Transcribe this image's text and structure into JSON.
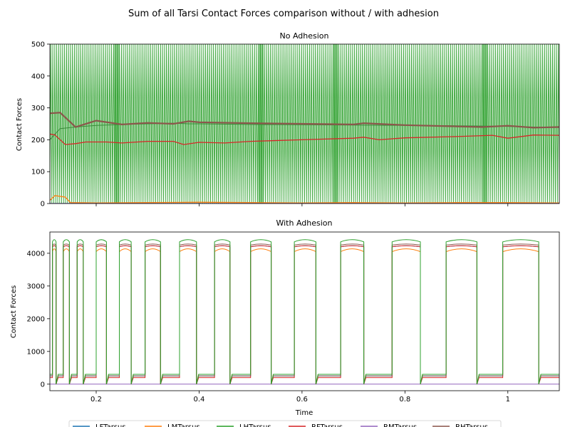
{
  "figure": {
    "title": "Sum of all Tarsi Contact Forces comparison without / with adhesion"
  },
  "legend": {
    "entries": [
      {
        "label": "LFTarsus",
        "color": "#1f77b4"
      },
      {
        "label": "LMTarsus",
        "color": "#ff7f0e"
      },
      {
        "label": "LHTarsus",
        "color": "#2ca02c"
      },
      {
        "label": "RFTarsus",
        "color": "#d62728"
      },
      {
        "label": "RMTarsus",
        "color": "#9467bd"
      },
      {
        "label": "RHTarsus",
        "color": "#8c564b"
      }
    ],
    "placement": "bottom-center"
  },
  "chart_data": [
    {
      "type": "line",
      "title": "No Adhesion",
      "xlabel": "",
      "ylabel": "Contact Forces",
      "xlim": [
        0.11,
        1.1
      ],
      "ylim": [
        0,
        500
      ],
      "xticks": [
        0.2,
        0.4,
        0.6,
        0.8,
        1.0
      ],
      "yticks": [
        0,
        100,
        200,
        300,
        400,
        500
      ],
      "xtick_labels_shown": false,
      "grid": false,
      "series": [
        {
          "name": "LHTarsus",
          "color": "#2ca02c",
          "description_values": "rapid oscillation between 0 and 500",
          "x": [
            0.11,
            0.13,
            0.16,
            0.2,
            0.25,
            0.3,
            0.35,
            0.38,
            0.4,
            0.5,
            0.6,
            0.7,
            0.8,
            0.9,
            0.95,
            1.0,
            1.05,
            1.1
          ],
          "y_envelope_mid": [
            200,
            235,
            240,
            245,
            248,
            250,
            252,
            250,
            250,
            248,
            247,
            246,
            245,
            244,
            243,
            242,
            240,
            240
          ]
        },
        {
          "name": "RHTarsus",
          "color": "#8c564b",
          "x": [
            0.11,
            0.13,
            0.16,
            0.2,
            0.25,
            0.3,
            0.35,
            0.38,
            0.4,
            0.5,
            0.6,
            0.7,
            0.72,
            0.8,
            0.9,
            0.95,
            1.0,
            1.05,
            1.1
          ],
          "y": [
            283,
            285,
            240,
            260,
            248,
            253,
            250,
            258,
            255,
            252,
            250,
            248,
            252,
            246,
            242,
            240,
            244,
            238,
            240
          ]
        },
        {
          "name": "RFTarsus",
          "color": "#d62728",
          "x": [
            0.11,
            0.12,
            0.14,
            0.16,
            0.18,
            0.22,
            0.25,
            0.3,
            0.35,
            0.37,
            0.4,
            0.45,
            0.5,
            0.6,
            0.7,
            0.72,
            0.75,
            0.8,
            0.9,
            0.97,
            1.0,
            1.05,
            1.1
          ],
          "y": [
            218,
            215,
            185,
            188,
            193,
            193,
            190,
            195,
            195,
            185,
            192,
            190,
            195,
            200,
            205,
            208,
            200,
            206,
            210,
            214,
            205,
            215,
            214
          ]
        },
        {
          "name": "LMTarsus",
          "color": "#ff7f0e",
          "x": [
            0.11,
            0.12,
            0.14,
            0.15,
            0.2,
            0.3,
            0.4,
            0.5,
            0.6,
            0.7,
            0.8,
            0.9,
            1.0,
            1.1
          ],
          "y": [
            10,
            25,
            20,
            3,
            2,
            3,
            4,
            3,
            2,
            3,
            2,
            3,
            3,
            2
          ]
        },
        {
          "name": "LFTarsus",
          "color": "#1f77b4",
          "x": [
            0.11,
            1.1
          ],
          "y": [
            0,
            0
          ]
        },
        {
          "name": "RMTarsus",
          "color": "#9467bd",
          "x": [
            0.11,
            1.1
          ],
          "y": [
            0,
            0
          ]
        }
      ]
    },
    {
      "type": "line",
      "title": "With Adhesion",
      "xlabel": "Time",
      "ylabel": "Contact Forces",
      "xlim": [
        0.11,
        1.1
      ],
      "ylim": [
        -200,
        4650
      ],
      "xticks": [
        0.2,
        0.4,
        0.6,
        0.8,
        1.0
      ],
      "yticks": [
        0,
        1000,
        2000,
        3000,
        4000
      ],
      "grid": false,
      "stance_windows": [
        [
          0.115,
          0.122
        ],
        [
          0.136,
          0.148
        ],
        [
          0.163,
          0.175
        ],
        [
          0.2,
          0.22
        ],
        [
          0.245,
          0.268
        ],
        [
          0.295,
          0.325
        ],
        [
          0.362,
          0.395
        ],
        [
          0.43,
          0.46
        ],
        [
          0.5,
          0.54
        ],
        [
          0.585,
          0.627
        ],
        [
          0.675,
          0.72
        ],
        [
          0.775,
          0.83
        ],
        [
          0.88,
          0.94
        ],
        [
          0.99,
          1.06
        ]
      ],
      "series": [
        {
          "name": "LHTarsus",
          "color": "#2ca02c",
          "plateau": 4350,
          "baseline": 300
        },
        {
          "name": "RHTarsus",
          "color": "#8c564b",
          "plateau": 4250,
          "baseline": 250
        },
        {
          "name": "RFTarsus",
          "color": "#d62728",
          "plateau": 4200,
          "baseline": 200
        },
        {
          "name": "LMTarsus",
          "color": "#ff7f0e",
          "plateau": 4050,
          "baseline": 300
        },
        {
          "name": "LFTarsus",
          "color": "#1f77b4",
          "plateau": 4200,
          "baseline": 250
        },
        {
          "name": "RMTarsus",
          "color": "#9467bd",
          "plateau": 0,
          "baseline": 0
        }
      ]
    }
  ]
}
